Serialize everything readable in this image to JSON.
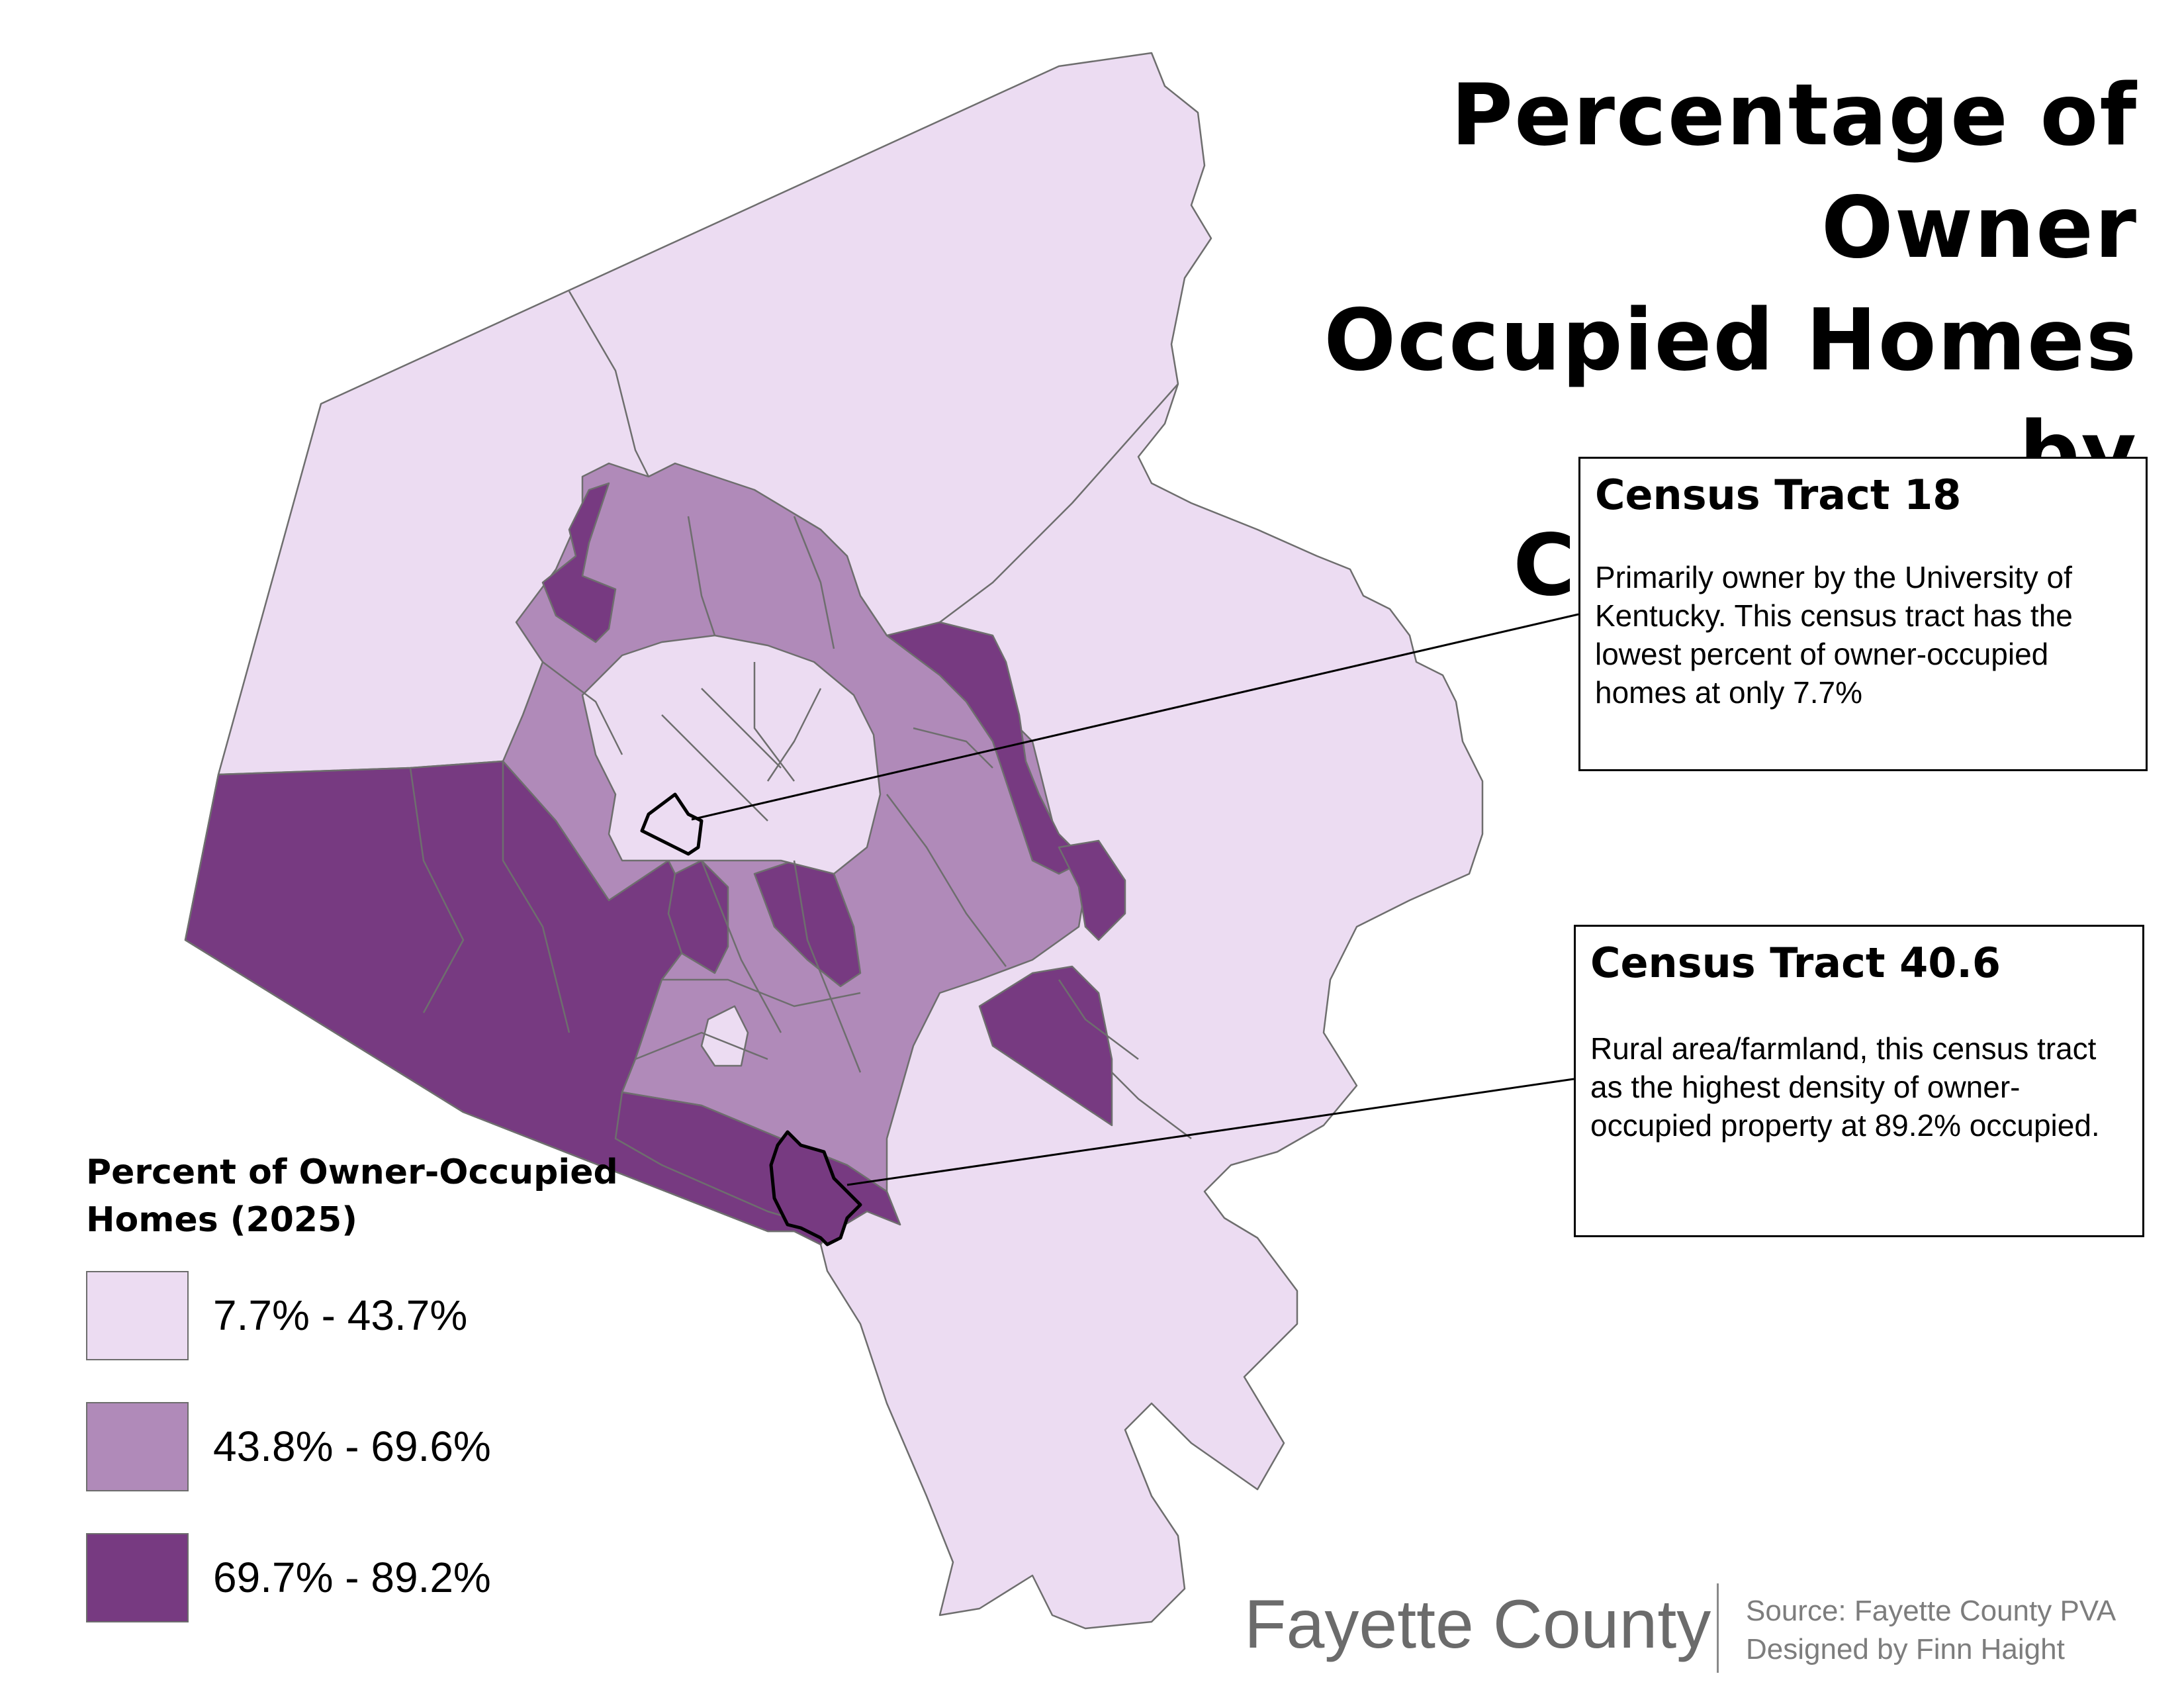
{
  "title": {
    "line1": "Percentage of Owner",
    "line2": "Occupied Homes by",
    "line3": "Census Tract"
  },
  "callouts": [
    {
      "title": "Census Tract 18",
      "body": "Primarily owner by the University of Kentucky. This census tract has the lowest percent of owner-occupied homes at only 7.7%"
    },
    {
      "title": "Census Tract 40.6",
      "body": "Rural area/farmland, this census tract as the highest density of owner-occupied property at 89.2% occupied."
    }
  ],
  "legend": {
    "title": "Percent of Owner-Occupied Homes (2025)",
    "classes": [
      {
        "label": "7.7% - 43.7%",
        "color": "#ecdcf2"
      },
      {
        "label": "43.8% - 69.6%",
        "color": "#b08ab9"
      },
      {
        "label": "69.7% - 89.2%",
        "color": "#773a81"
      }
    ]
  },
  "footer": {
    "county": "Fayette County",
    "source": "Source: Fayette County PVA",
    "designer": "Designed by Finn Haight"
  },
  "colors": {
    "boundary": "#6e6e6e",
    "highlight": "#000000"
  }
}
